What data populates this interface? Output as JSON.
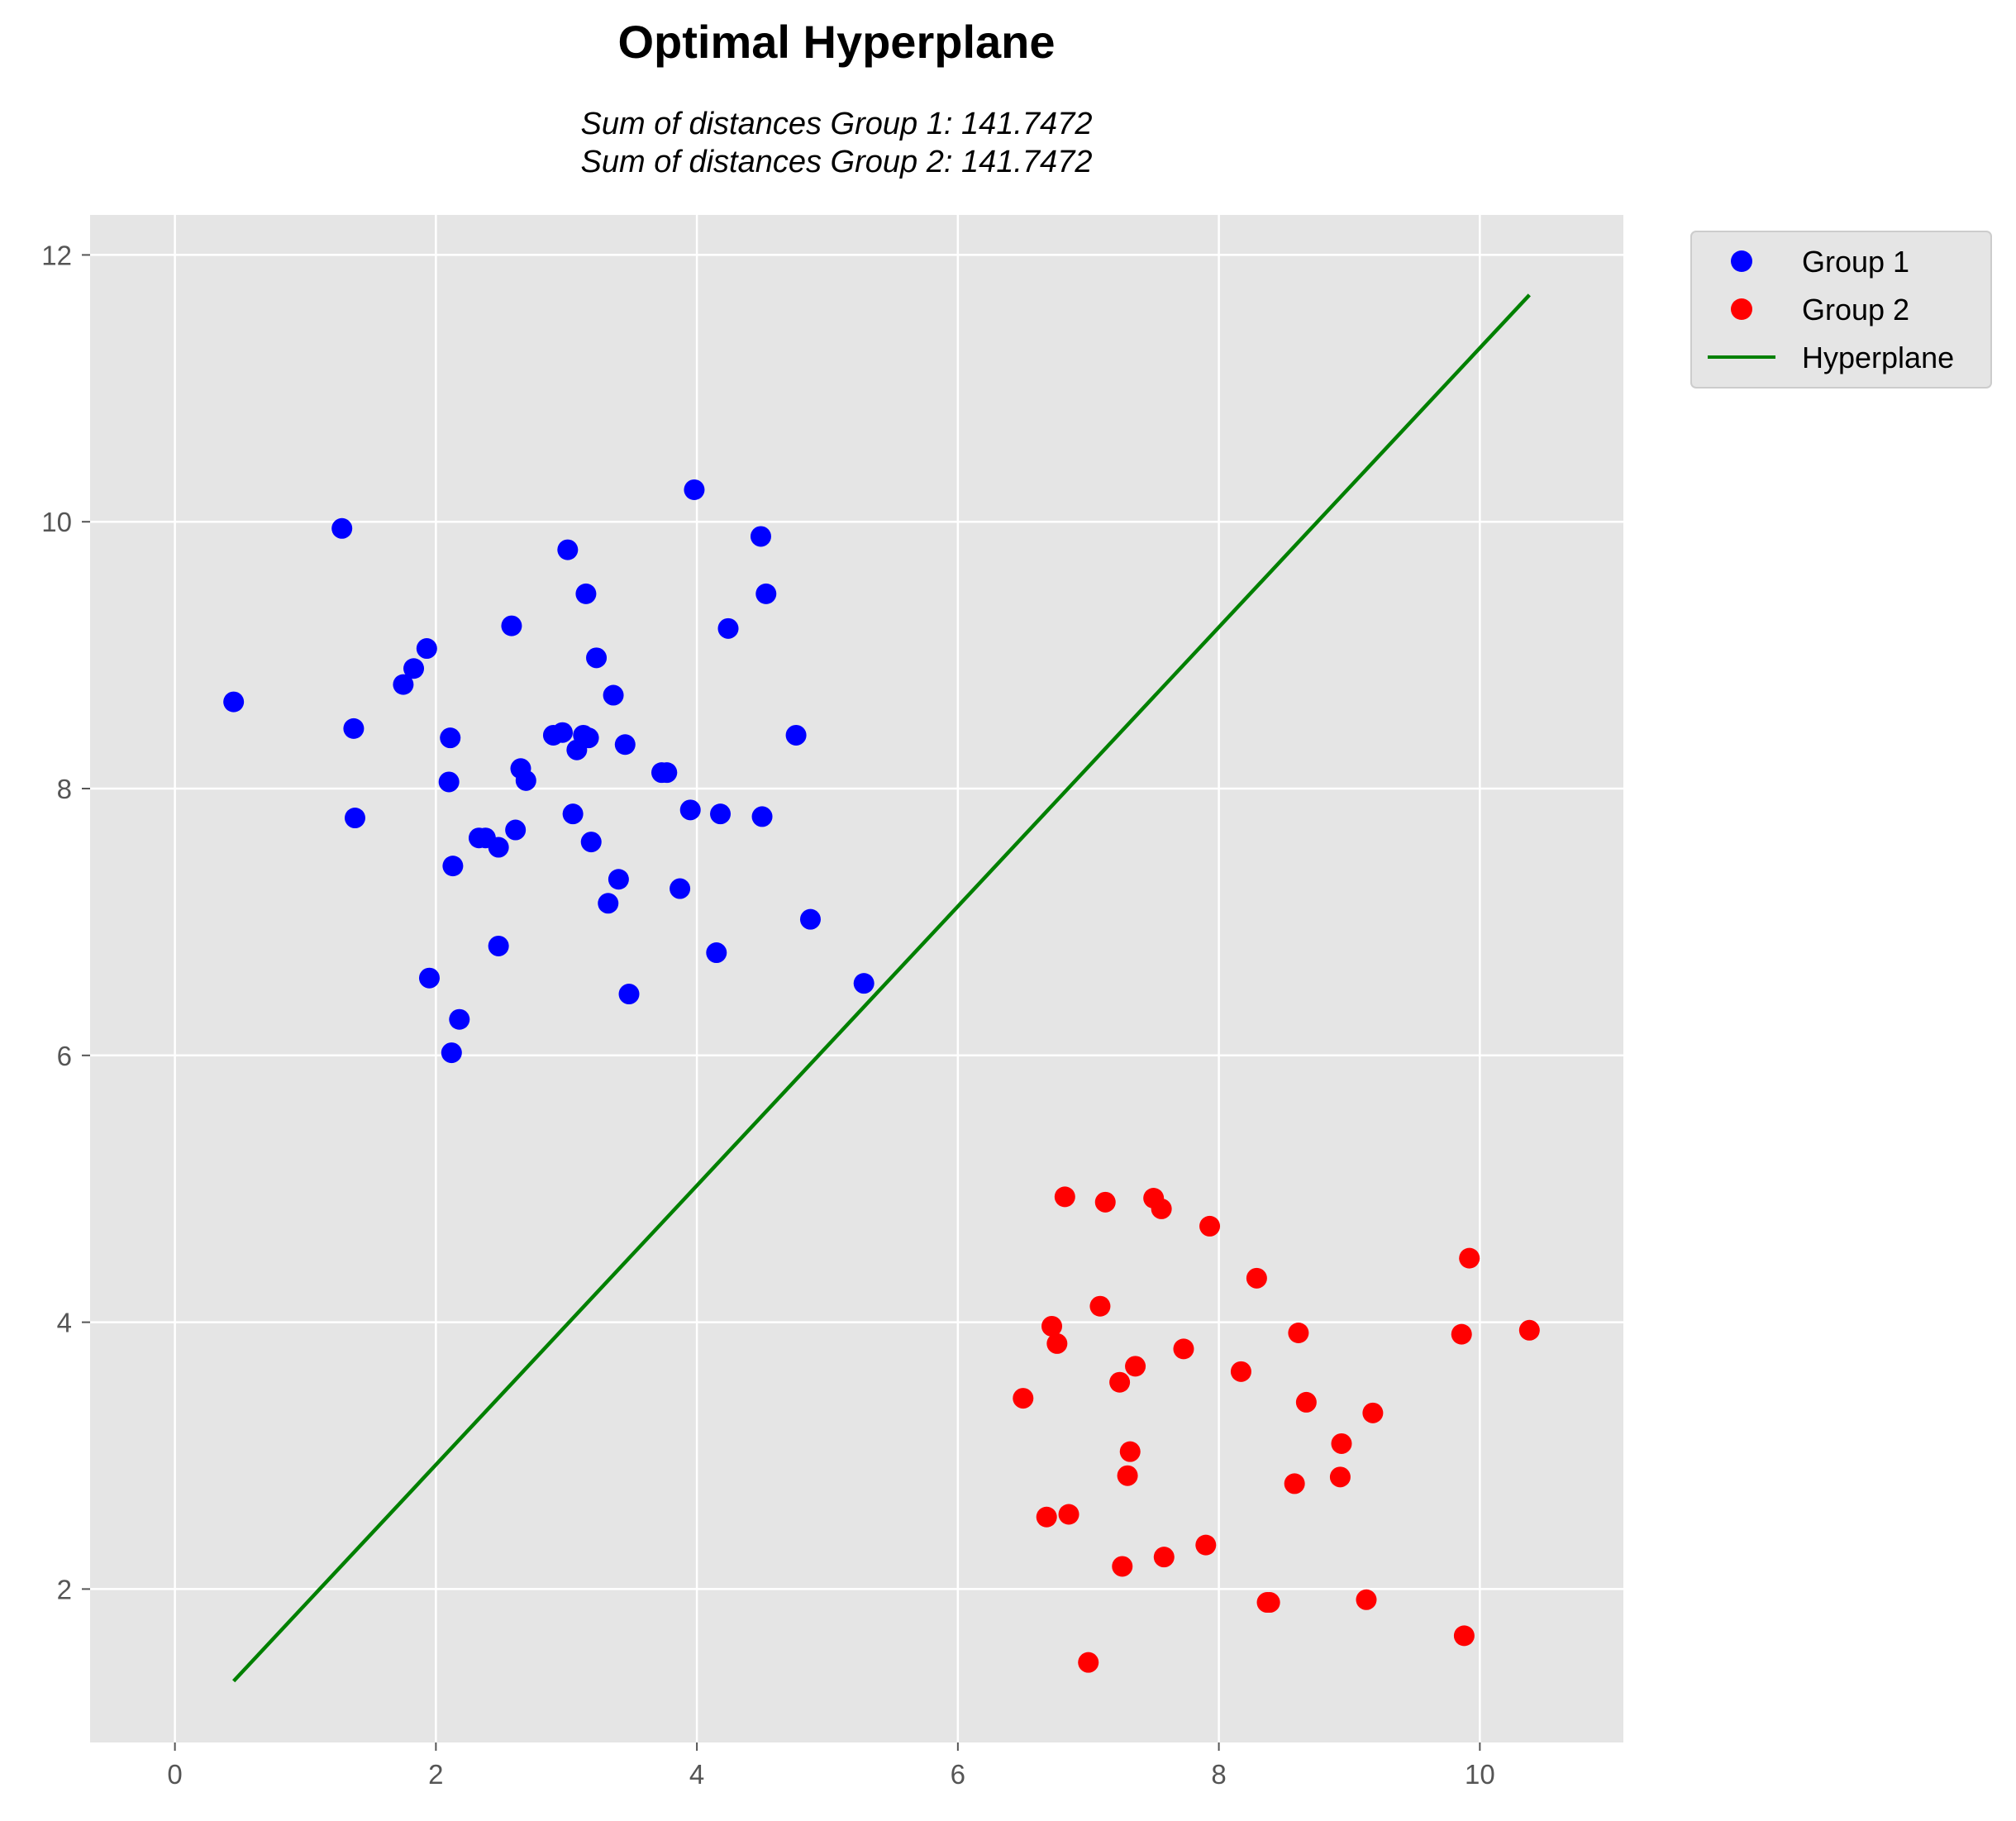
{
  "chart_data": {
    "type": "scatter",
    "title": "Optimal Hyperplane",
    "subtitle_lines": [
      "Sum of distances Group 1: 141.7472",
      "Sum of distances Group 2: 141.7472"
    ],
    "xlabel": "",
    "ylabel": "",
    "xlim": [
      -0.65,
      11.1
    ],
    "ylim": [
      0.85,
      12.3
    ],
    "x_ticks": [
      0,
      2,
      4,
      6,
      8,
      10
    ],
    "x_tick_labels": [
      "0",
      "2",
      "4",
      "6",
      "8",
      "10"
    ],
    "y_ticks": [
      2,
      4,
      6,
      8,
      10,
      12
    ],
    "y_tick_labels": [
      "2",
      "4",
      "6",
      "8",
      "10",
      "12"
    ],
    "grid": true,
    "legend_position": "outside-top-right",
    "colors": {
      "background": "#e5e5e5",
      "grid": "#ffffff",
      "group1": "#0000ff",
      "group2": "#ff0000",
      "hyperplane": "#008000"
    },
    "series": [
      {
        "name": "Group 1",
        "kind": "scatter",
        "color": "#0000ff",
        "points": [
          [
            0.45,
            8.65
          ],
          [
            1.28,
            9.95
          ],
          [
            1.37,
            8.45
          ],
          [
            1.38,
            7.78
          ],
          [
            1.75,
            8.78
          ],
          [
            1.83,
            8.9
          ],
          [
            1.93,
            9.05
          ],
          [
            1.95,
            6.58
          ],
          [
            2.1,
            8.05
          ],
          [
            2.11,
            8.38
          ],
          [
            2.12,
            6.02
          ],
          [
            2.13,
            7.42
          ],
          [
            2.18,
            6.27
          ],
          [
            2.33,
            7.63
          ],
          [
            2.38,
            7.63
          ],
          [
            2.48,
            7.56
          ],
          [
            2.48,
            6.82
          ],
          [
            2.58,
            9.22
          ],
          [
            2.61,
            7.69
          ],
          [
            2.65,
            8.15
          ],
          [
            2.69,
            8.06
          ],
          [
            2.9,
            8.4
          ],
          [
            2.97,
            8.42
          ],
          [
            3.01,
            9.79
          ],
          [
            3.05,
            7.81
          ],
          [
            3.08,
            8.29
          ],
          [
            3.13,
            8.4
          ],
          [
            3.15,
            9.46
          ],
          [
            3.17,
            8.38
          ],
          [
            3.19,
            7.6
          ],
          [
            3.23,
            8.98
          ],
          [
            3.32,
            7.14
          ],
          [
            3.36,
            8.7
          ],
          [
            3.4,
            7.32
          ],
          [
            3.45,
            8.33
          ],
          [
            3.48,
            6.46
          ],
          [
            3.73,
            8.12
          ],
          [
            3.77,
            8.12
          ],
          [
            3.87,
            7.25
          ],
          [
            3.95,
            7.84
          ],
          [
            3.98,
            10.24
          ],
          [
            4.15,
            6.77
          ],
          [
            4.18,
            7.81
          ],
          [
            4.24,
            9.2
          ],
          [
            4.49,
            9.89
          ],
          [
            4.5,
            7.79
          ],
          [
            4.53,
            9.46
          ],
          [
            4.76,
            8.4
          ],
          [
            4.87,
            7.02
          ],
          [
            5.28,
            6.54
          ]
        ]
      },
      {
        "name": "Group 2",
        "kind": "scatter",
        "color": "#ff0000",
        "points": [
          [
            6.5,
            3.43
          ],
          [
            6.68,
            2.54
          ],
          [
            6.72,
            3.97
          ],
          [
            6.76,
            3.84
          ],
          [
            6.82,
            4.94
          ],
          [
            6.85,
            2.56
          ],
          [
            7.0,
            1.45
          ],
          [
            7.09,
            4.12
          ],
          [
            7.13,
            4.9
          ],
          [
            7.24,
            3.55
          ],
          [
            7.26,
            2.17
          ],
          [
            7.3,
            2.85
          ],
          [
            7.32,
            3.03
          ],
          [
            7.36,
            3.67
          ],
          [
            7.5,
            4.93
          ],
          [
            7.56,
            4.85
          ],
          [
            7.58,
            2.24
          ],
          [
            7.73,
            3.8
          ],
          [
            7.9,
            2.33
          ],
          [
            7.93,
            4.72
          ],
          [
            8.17,
            3.63
          ],
          [
            8.29,
            4.33
          ],
          [
            8.37,
            1.9
          ],
          [
            8.39,
            1.9
          ],
          [
            8.58,
            2.79
          ],
          [
            8.61,
            3.92
          ],
          [
            8.67,
            3.4
          ],
          [
            8.93,
            2.84
          ],
          [
            8.94,
            3.09
          ],
          [
            9.13,
            1.92
          ],
          [
            9.18,
            3.32
          ],
          [
            9.86,
            3.91
          ],
          [
            9.88,
            1.65
          ],
          [
            9.92,
            4.48
          ],
          [
            10.38,
            3.94
          ]
        ]
      },
      {
        "name": "Hyperplane",
        "kind": "line",
        "color": "#008000",
        "points": [
          [
            0.45,
            1.31
          ],
          [
            10.38,
            11.7
          ]
        ]
      }
    ]
  }
}
